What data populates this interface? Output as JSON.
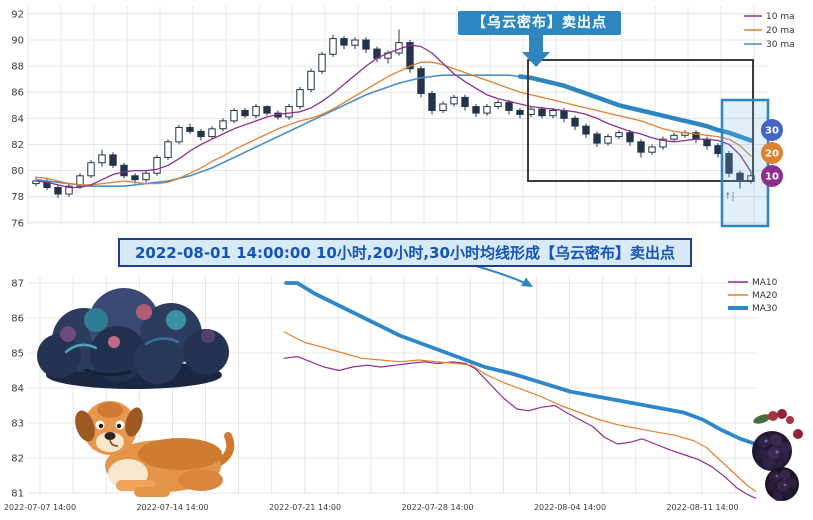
{
  "colors": {
    "accent": "#2e86c1"
  },
  "banner": {
    "text": "2022-08-01 14:00:00 10小时,20小时,30小时均线形成【乌云密布】卖出点",
    "text_color": "#1553b5",
    "bg": "#d8eaf8",
    "border": "#1e3f8f"
  },
  "chart_data": [
    {
      "type": "candlestick",
      "title": "",
      "ylim": [
        75.6,
        92.6
      ],
      "yticks": [
        76,
        78,
        80,
        82,
        84,
        86,
        88,
        90,
        92
      ],
      "grid": true,
      "legend_position": "top-right",
      "legend": [
        {
          "label": "10 ma",
          "color": "#8e2f8e"
        },
        {
          "label": "20 ma",
          "color": "#e0812f"
        },
        {
          "label": "30 ma",
          "color": "#4a90c8"
        }
      ],
      "ma30_thick_color": "#2e86c1",
      "annotation": {
        "label": "【乌云密布】卖出点",
        "bg": "#2e86c1",
        "text_color": "#ffffff"
      },
      "badges": [
        {
          "label": "30",
          "color": "#4664c8"
        },
        {
          "label": "20",
          "color": "#e0812f"
        },
        {
          "label": "10",
          "color": "#8e2f8e"
        }
      ],
      "marker_glyph": "↑|",
      "candle_colors": {
        "up": "#ffffff",
        "down": "#22344a",
        "outline": "#22344a"
      },
      "candles": [
        [
          79.0,
          79.5,
          78.8,
          79.2
        ],
        [
          79.2,
          79.4,
          78.5,
          78.7
        ],
        [
          78.7,
          78.9,
          77.9,
          78.2
        ],
        [
          78.2,
          79.0,
          78.0,
          78.8
        ],
        [
          78.8,
          79.8,
          78.6,
          79.6
        ],
        [
          79.6,
          80.8,
          79.4,
          80.6
        ],
        [
          80.6,
          81.6,
          80.3,
          81.2
        ],
        [
          81.2,
          81.4,
          80.2,
          80.4
        ],
        [
          80.4,
          80.6,
          79.4,
          79.6
        ],
        [
          79.6,
          79.8,
          79.0,
          79.3
        ],
        [
          79.3,
          80.0,
          79.1,
          79.8
        ],
        [
          79.8,
          81.2,
          79.6,
          81.0
        ],
        [
          81.0,
          82.4,
          80.8,
          82.2
        ],
        [
          82.2,
          83.5,
          82.0,
          83.3
        ],
        [
          83.3,
          83.6,
          82.8,
          83.0
        ],
        [
          83.0,
          83.2,
          82.3,
          82.6
        ],
        [
          82.6,
          83.4,
          82.4,
          83.2
        ],
        [
          83.2,
          84.0,
          83.0,
          83.8
        ],
        [
          83.8,
          84.8,
          83.6,
          84.6
        ],
        [
          84.6,
          84.8,
          84.0,
          84.2
        ],
        [
          84.2,
          85.1,
          84.0,
          84.9
        ],
        [
          84.9,
          85.0,
          84.2,
          84.4
        ],
        [
          84.4,
          84.6,
          83.9,
          84.1
        ],
        [
          84.1,
          85.1,
          83.9,
          84.9
        ],
        [
          84.9,
          86.4,
          84.7,
          86.2
        ],
        [
          86.2,
          87.8,
          86.0,
          87.6
        ],
        [
          87.6,
          89.1,
          87.4,
          88.9
        ],
        [
          88.9,
          90.4,
          88.7,
          90.1
        ],
        [
          90.1,
          90.3,
          89.3,
          89.6
        ],
        [
          89.6,
          90.2,
          89.3,
          90.0
        ],
        [
          90.0,
          90.2,
          89.0,
          89.3
        ],
        [
          89.3,
          89.5,
          88.3,
          88.6
        ],
        [
          88.6,
          89.2,
          88.2,
          89.0
        ],
        [
          89.0,
          90.8,
          88.8,
          89.8
        ],
        [
          89.8,
          90.0,
          87.5,
          87.8
        ],
        [
          87.8,
          88.0,
          85.6,
          85.9
        ],
        [
          85.9,
          86.1,
          84.3,
          84.6
        ],
        [
          84.6,
          85.3,
          84.4,
          85.1
        ],
        [
          85.1,
          85.8,
          84.9,
          85.6
        ],
        [
          85.6,
          85.8,
          84.6,
          84.9
        ],
        [
          84.9,
          85.1,
          84.1,
          84.4
        ],
        [
          84.4,
          85.1,
          84.2,
          84.9
        ],
        [
          84.9,
          85.4,
          84.7,
          85.2
        ],
        [
          85.2,
          85.4,
          84.3,
          84.6
        ],
        [
          84.6,
          84.8,
          84.0,
          84.3
        ],
        [
          84.3,
          84.9,
          84.1,
          84.7
        ],
        [
          84.7,
          84.9,
          84.0,
          84.2
        ],
        [
          84.2,
          84.8,
          84.0,
          84.6
        ],
        [
          84.6,
          84.8,
          83.7,
          84.0
        ],
        [
          84.0,
          84.2,
          83.1,
          83.4
        ],
        [
          83.4,
          83.6,
          82.5,
          82.8
        ],
        [
          82.8,
          83.0,
          81.8,
          82.1
        ],
        [
          82.1,
          82.8,
          81.9,
          82.6
        ],
        [
          82.6,
          83.1,
          82.4,
          82.9
        ],
        [
          82.9,
          83.1,
          81.9,
          82.2
        ],
        [
          82.2,
          82.4,
          81.0,
          81.4
        ],
        [
          81.4,
          82.0,
          81.2,
          81.8
        ],
        [
          81.8,
          82.6,
          81.6,
          82.4
        ],
        [
          82.4,
          82.9,
          82.2,
          82.7
        ],
        [
          82.7,
          83.1,
          82.5,
          82.9
        ],
        [
          82.9,
          83.1,
          82.1,
          82.4
        ],
        [
          82.4,
          82.6,
          81.6,
          81.9
        ],
        [
          81.9,
          82.1,
          81.0,
          81.3
        ],
        [
          81.3,
          81.5,
          79.5,
          79.8
        ],
        [
          79.8,
          80.0,
          78.6,
          79.2
        ],
        [
          79.2,
          79.9,
          79.0,
          79.6
        ]
      ],
      "ma10": [
        79.2,
        79.1,
        78.9,
        78.7,
        78.7,
        78.9,
        79.3,
        79.7,
        79.9,
        80.0,
        80.0,
        80.1,
        80.4,
        80.9,
        81.5,
        82.0,
        82.4,
        82.8,
        83.2,
        83.5,
        83.8,
        84.1,
        84.3,
        84.4,
        84.5,
        84.8,
        85.3,
        85.9,
        86.6,
        87.3,
        88.0,
        88.6,
        89.0,
        89.3,
        89.6,
        89.5,
        89.0,
        88.2,
        87.4,
        86.8,
        86.3,
        85.8,
        85.5,
        85.3,
        85.1,
        84.9,
        84.8,
        84.7,
        84.6,
        84.5,
        84.3,
        84.0,
        83.6,
        83.3,
        83.0,
        82.8,
        82.5,
        82.3,
        82.2,
        82.3,
        82.4,
        82.4,
        82.3,
        82.0,
        81.2,
        79.9
      ],
      "ma20": [
        79.5,
        79.4,
        79.2,
        79.0,
        78.9,
        78.9,
        79.0,
        79.1,
        79.2,
        79.1,
        79.0,
        79.0,
        79.1,
        79.4,
        79.8,
        80.2,
        80.7,
        81.1,
        81.6,
        82.0,
        82.4,
        82.8,
        83.2,
        83.5,
        83.8,
        84.0,
        84.3,
        84.7,
        85.2,
        85.7,
        86.2,
        86.7,
        87.2,
        87.6,
        88.0,
        88.3,
        88.3,
        88.1,
        87.8,
        87.5,
        87.2,
        86.9,
        86.6,
        86.3,
        86.0,
        85.8,
        85.6,
        85.4,
        85.2,
        85.0,
        84.8,
        84.6,
        84.4,
        84.2,
        84.0,
        83.8,
        83.5,
        83.2,
        83.0,
        82.9,
        82.8,
        82.7,
        82.6,
        82.4,
        81.9,
        81.1
      ],
      "ma30": [
        79.3,
        79.2,
        79.1,
        79.0,
        78.9,
        78.8,
        78.8,
        78.8,
        78.8,
        78.9,
        79.0,
        79.1,
        79.2,
        79.4,
        79.6,
        79.9,
        80.2,
        80.6,
        81.0,
        81.4,
        81.8,
        82.2,
        82.6,
        83.0,
        83.4,
        83.8,
        84.2,
        84.6,
        85.0,
        85.4,
        85.8,
        86.1,
        86.4,
        86.7,
        86.9,
        87.1,
        87.2,
        87.3,
        87.3,
        87.3,
        87.3,
        87.3,
        87.3,
        87.3,
        87.2,
        87.1,
        86.9,
        86.7,
        86.5,
        86.2,
        85.9,
        85.6,
        85.3,
        85.0,
        84.8,
        84.6,
        84.4,
        84.2,
        84.0,
        83.8,
        83.6,
        83.4,
        83.1,
        82.9,
        82.6,
        82.3
      ],
      "ma30_thick_from": 44
    },
    {
      "type": "line",
      "title": "",
      "ylim": [
        80.5,
        87.3
      ],
      "yticks": [
        81,
        82,
        83,
        84,
        85,
        86,
        87
      ],
      "grid": true,
      "legend_position": "top-right",
      "x_axis": {
        "unit": "days since 2022-07-07 14:00",
        "tick_days": [
          0,
          7,
          14,
          21,
          28,
          35
        ],
        "tick_labels": [
          "2022-07-07 14:00",
          "2022-07-14 14:00",
          "2022-07-21 14:00",
          "2022-07-28 14:00",
          "2022-08-04 14:00",
          "2022-08-11 14:00"
        ]
      },
      "series": [
        {
          "name": "MA10",
          "color": "#8e2f8e",
          "width": 1.2,
          "points": [
            [
              12.9,
              84.85
            ],
            [
              13.6,
              84.9
            ],
            [
              14.3,
              84.75
            ],
            [
              15.0,
              84.6
            ],
            [
              15.8,
              84.5
            ],
            [
              16.5,
              84.6
            ],
            [
              17.3,
              84.65
            ],
            [
              18.0,
              84.6
            ],
            [
              18.8,
              84.65
            ],
            [
              19.5,
              84.7
            ],
            [
              20.3,
              84.75
            ],
            [
              21.0,
              84.7
            ],
            [
              21.8,
              84.75
            ],
            [
              22.5,
              84.7
            ],
            [
              23.0,
              84.55
            ],
            [
              23.8,
              84.1
            ],
            [
              24.5,
              83.7
            ],
            [
              25.2,
              83.4
            ],
            [
              25.8,
              83.35
            ],
            [
              26.5,
              83.45
            ],
            [
              27.2,
              83.5
            ],
            [
              27.8,
              83.3
            ],
            [
              28.5,
              83.1
            ],
            [
              29.2,
              82.9
            ],
            [
              29.8,
              82.6
            ],
            [
              30.5,
              82.4
            ],
            [
              31.2,
              82.45
            ],
            [
              31.8,
              82.55
            ],
            [
              32.5,
              82.4
            ],
            [
              33.2,
              82.25
            ],
            [
              34.0,
              82.1
            ],
            [
              34.8,
              81.95
            ],
            [
              35.5,
              81.75
            ],
            [
              36.2,
              81.45
            ],
            [
              36.8,
              81.15
            ],
            [
              37.4,
              80.95
            ],
            [
              37.8,
              80.85
            ]
          ]
        },
        {
          "name": "MA20",
          "color": "#e0812f",
          "width": 1.2,
          "points": [
            [
              12.9,
              85.6
            ],
            [
              14.0,
              85.3
            ],
            [
              15.0,
              85.15
            ],
            [
              16.0,
              85.0
            ],
            [
              17.0,
              84.85
            ],
            [
              18.0,
              84.8
            ],
            [
              19.0,
              84.75
            ],
            [
              20.0,
              84.8
            ],
            [
              21.0,
              84.75
            ],
            [
              22.0,
              84.7
            ],
            [
              22.8,
              84.65
            ],
            [
              23.5,
              84.4
            ],
            [
              24.5,
              84.15
            ],
            [
              25.5,
              83.95
            ],
            [
              26.5,
              83.75
            ],
            [
              27.5,
              83.5
            ],
            [
              28.5,
              83.3
            ],
            [
              29.5,
              83.1
            ],
            [
              30.5,
              82.95
            ],
            [
              31.5,
              82.85
            ],
            [
              32.5,
              82.75
            ],
            [
              33.5,
              82.65
            ],
            [
              34.5,
              82.5
            ],
            [
              35.2,
              82.3
            ],
            [
              36.0,
              81.9
            ],
            [
              36.8,
              81.5
            ],
            [
              37.4,
              81.2
            ],
            [
              37.8,
              81.05
            ]
          ]
        },
        {
          "name": "MA30",
          "color": "#2f86c8",
          "width": 3.8,
          "points": [
            [
              13.0,
              87.0
            ],
            [
              13.6,
              87.0
            ],
            [
              14.5,
              86.7
            ],
            [
              16.0,
              86.3
            ],
            [
              17.5,
              85.9
            ],
            [
              19.0,
              85.5
            ],
            [
              20.5,
              85.2
            ],
            [
              22.0,
              84.9
            ],
            [
              23.5,
              84.6
            ],
            [
              25.0,
              84.4
            ],
            [
              26.5,
              84.15
            ],
            [
              28.0,
              83.9
            ],
            [
              29.5,
              83.75
            ],
            [
              31.0,
              83.6
            ],
            [
              32.5,
              83.45
            ],
            [
              34.0,
              83.3
            ],
            [
              35.0,
              83.1
            ],
            [
              36.0,
              82.8
            ],
            [
              37.0,
              82.55
            ],
            [
              37.8,
              82.4
            ]
          ]
        }
      ]
    }
  ]
}
